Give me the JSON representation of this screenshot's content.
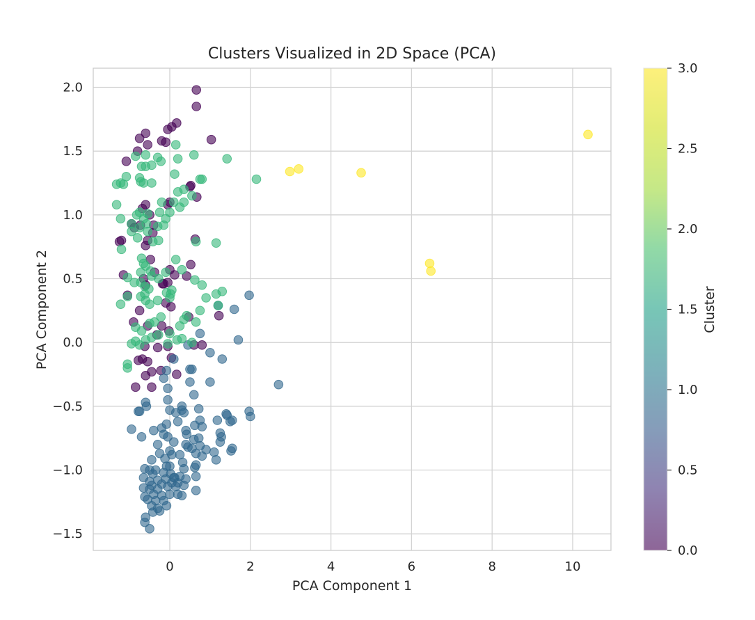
{
  "chart_data": {
    "type": "scatter",
    "title": "Clusters Visualized in 2D Space (PCA)",
    "xlabel": "PCA Component 1",
    "ylabel": "PCA Component 2",
    "xlim": [
      -1.9,
      10.95
    ],
    "ylim": [
      -1.63,
      2.15
    ],
    "xticks": [
      0,
      2,
      4,
      6,
      8,
      10
    ],
    "yticks": [
      -1.5,
      -1.0,
      -0.5,
      0.0,
      0.5,
      1.0,
      1.5,
      2.0
    ],
    "grid": true,
    "point_alpha": 0.6,
    "colormap": "viridis",
    "colorbar": {
      "label": "Cluster",
      "range": [
        0.0,
        3.0
      ],
      "ticks": [
        0.0,
        0.5,
        1.0,
        1.5,
        2.0,
        2.5,
        3.0
      ],
      "tick_labels": [
        "0.0",
        "0.5",
        "1.0",
        "1.5",
        "2.0",
        "2.5",
        "3.0"
      ]
    },
    "cluster_colors": {
      "0": "#440154",
      "1": "#31688e",
      "2": "#35b779",
      "3": "#fde725"
    },
    "series": [
      {
        "cluster": 0,
        "x": [
          0.66,
          0.66,
          0.17,
          0.05,
          -0.05,
          -0.2,
          -0.75,
          -0.6,
          -0.55,
          1.03,
          -0.8,
          -0.1,
          -1.08,
          0.52,
          0.5,
          0.67,
          0.0,
          -0.05,
          -0.6,
          -0.68,
          -0.5,
          -0.95,
          -0.4,
          -0.88,
          -0.42,
          -0.73,
          -1.2,
          -1.25,
          -0.6,
          -0.55,
          0.63,
          -0.48,
          0.52,
          -0.38,
          0.12,
          -0.65,
          0.0,
          -0.15,
          0.42,
          -0.05,
          -0.18,
          -0.6,
          -1.15,
          -1.05,
          -0.1,
          0.03,
          -0.75,
          -0.9,
          1.22,
          0.47,
          -0.2,
          -0.55,
          -0.02,
          -0.32,
          0.8,
          0.6,
          -0.3,
          -0.62,
          -0.05,
          0.04,
          -0.68,
          -0.55,
          -0.78,
          -0.22,
          0.17,
          -0.45,
          -0.6,
          -0.85,
          -0.45
        ],
        "y": [
          1.98,
          1.85,
          1.72,
          1.69,
          1.67,
          1.58,
          1.6,
          1.64,
          1.55,
          1.59,
          1.5,
          1.57,
          1.42,
          1.23,
          1.22,
          1.14,
          1.1,
          1.08,
          1.08,
          1.05,
          1.0,
          0.93,
          0.92,
          0.9,
          0.86,
          0.92,
          0.8,
          0.79,
          0.76,
          0.8,
          0.81,
          0.65,
          0.61,
          0.55,
          0.53,
          0.5,
          0.57,
          0.46,
          0.52,
          0.47,
          0.46,
          0.45,
          0.53,
          0.37,
          0.31,
          0.28,
          0.25,
          0.16,
          0.21,
          0.2,
          0.13,
          0.13,
          0.09,
          0.06,
          -0.02,
          -0.02,
          -0.04,
          -0.03,
          -0.03,
          -0.12,
          -0.13,
          -0.15,
          -0.14,
          -0.22,
          -0.25,
          -0.23,
          -0.26,
          -0.35,
          -0.35
        ]
      },
      {
        "cluster": 1,
        "x": [
          1.97,
          1.2,
          1.6,
          1.7,
          0.75,
          0.45,
          1.0,
          1.3,
          0.1,
          0.5,
          -0.08,
          0.55,
          -0.15,
          0.5,
          1.0,
          2.7,
          -0.05,
          0.6,
          -0.6,
          -0.05,
          -0.58,
          0.3,
          0.72,
          1.97,
          2.0,
          1.4,
          1.42,
          1.55,
          0.0,
          0.15,
          0.3,
          0.35,
          -0.95,
          -0.78,
          -0.75,
          0.2,
          0.62,
          0.75,
          1.18,
          1.5,
          -0.4,
          -0.2,
          -0.08,
          0.4,
          0.42,
          0.8,
          1.25,
          1.28,
          -0.7,
          -0.05,
          0.1,
          0.4,
          0.6,
          0.72,
          1.25,
          1.55,
          -0.15,
          -0.3,
          0.0,
          0.45,
          0.55,
          0.75,
          0.9,
          1.1,
          1.52,
          -0.25,
          0.05,
          0.25,
          0.65,
          0.8,
          1.15,
          -0.45,
          -0.62,
          -0.12,
          0.32,
          0.65,
          -0.5,
          -0.35,
          -0.08,
          0.0,
          0.35,
          0.62,
          -0.42,
          -0.15,
          0.02,
          0.1,
          0.25,
          0.4,
          -0.65,
          -0.5,
          -0.3,
          -0.1,
          0.12,
          0.65,
          -0.65,
          -0.45,
          -0.2,
          0.05,
          0.2,
          0.35,
          -0.5,
          -0.3,
          -0.05,
          0.15,
          0.3,
          0.65,
          -0.62,
          -0.4,
          -0.2,
          0.0,
          0.2,
          -0.55,
          -0.35,
          -0.15,
          -0.45,
          -0.3,
          -0.08,
          -0.6,
          -0.42,
          -0.25,
          -0.62,
          -0.5
        ],
        "y": [
          0.37,
          0.29,
          0.26,
          0.02,
          0.07,
          -0.02,
          -0.08,
          -0.13,
          -0.13,
          -0.21,
          -0.22,
          -0.21,
          -0.28,
          -0.31,
          -0.31,
          -0.33,
          -0.36,
          -0.41,
          -0.47,
          -0.45,
          -0.5,
          -0.5,
          -0.52,
          -0.54,
          -0.58,
          -0.56,
          -0.57,
          -0.61,
          -0.53,
          -0.55,
          -0.53,
          -0.55,
          -0.68,
          -0.54,
          -0.54,
          -0.62,
          -0.65,
          -0.61,
          -0.61,
          -0.62,
          -0.69,
          -0.67,
          -0.64,
          -0.69,
          -0.72,
          -0.66,
          -0.71,
          -0.74,
          -0.74,
          -0.74,
          -0.78,
          -0.8,
          -0.76,
          -0.75,
          -0.78,
          -0.83,
          -0.72,
          -0.8,
          -0.85,
          -0.82,
          -0.83,
          -0.81,
          -0.84,
          -0.86,
          -0.85,
          -0.87,
          -0.88,
          -0.88,
          -0.87,
          -0.89,
          -0.92,
          -0.92,
          -0.99,
          -0.91,
          -0.94,
          -0.96,
          -1.0,
          -1.0,
          -0.97,
          -0.97,
          -0.99,
          -0.98,
          -1.03,
          -1.02,
          -1.03,
          -1.06,
          -1.05,
          -1.07,
          -1.06,
          -1.09,
          -1.08,
          -1.07,
          -1.06,
          -1.05,
          -1.14,
          -1.12,
          -1.11,
          -1.1,
          -1.1,
          -1.12,
          -1.15,
          -1.15,
          -1.13,
          -1.13,
          -1.2,
          -1.16,
          -1.21,
          -1.19,
          -1.2,
          -1.19,
          -1.19,
          -1.23,
          -1.24,
          -1.24,
          -1.28,
          -1.3,
          -1.28,
          -1.37,
          -1.33,
          -1.32,
          -1.41,
          -1.46
        ]
      },
      {
        "cluster": 2,
        "x": [
          0.15,
          0.6,
          -0.6,
          -0.85,
          -0.3,
          0.2,
          -0.22,
          -0.45,
          1.42,
          -0.6,
          -0.7,
          2.15,
          0.8,
          0.75,
          -1.32,
          -1.08,
          -1.15,
          -1.22,
          -0.75,
          -0.65,
          -0.72,
          0.12,
          -0.45,
          0.35,
          0.2,
          0.55,
          0.35,
          0.25,
          -0.2,
          0.1,
          -1.32,
          -0.75,
          -0.82,
          -0.55,
          -0.65,
          -0.25,
          0.0,
          -0.1,
          -1.22,
          -0.95,
          -0.58,
          -0.75,
          -0.3,
          -0.55,
          -0.15,
          -0.95,
          0.65,
          1.15,
          -0.42,
          -0.8,
          -1.2,
          -0.7,
          -0.28,
          0.15,
          -0.65,
          -0.6,
          -0.48,
          -0.72,
          -0.1,
          0.3,
          -0.45,
          -0.28,
          0.62,
          0.8,
          -1.05,
          -0.72,
          -0.62,
          -0.88,
          -0.52,
          0.05,
          0.02,
          1.3,
          1.15,
          -0.62,
          -0.08,
          -0.72,
          0.9,
          -1.05,
          0.0,
          -0.6,
          -0.3,
          1.2,
          -1.22,
          -0.5,
          0.42,
          0.35,
          0.75,
          -0.22,
          0.65,
          -0.5,
          -0.38,
          -0.85,
          -0.7,
          0.0,
          0.25,
          -0.28,
          -0.45,
          0.3,
          -0.6,
          -0.85,
          0.55,
          0.18,
          -0.05,
          -0.95,
          -0.75,
          -1.05,
          -1.05
        ],
        "y": [
          1.55,
          1.47,
          1.47,
          1.46,
          1.45,
          1.44,
          1.42,
          1.39,
          1.44,
          1.38,
          1.38,
          1.28,
          1.28,
          1.28,
          1.24,
          1.3,
          1.24,
          1.25,
          1.29,
          1.25,
          1.26,
          1.32,
          1.25,
          1.2,
          1.18,
          1.15,
          1.1,
          1.06,
          1.1,
          1.1,
          1.08,
          1.02,
          1.0,
          1.01,
          0.97,
          1.02,
          1.02,
          0.97,
          0.97,
          0.93,
          0.93,
          0.9,
          0.91,
          0.87,
          0.92,
          0.87,
          0.79,
          0.78,
          0.79,
          0.82,
          0.73,
          0.66,
          0.8,
          0.65,
          0.62,
          0.6,
          0.56,
          0.55,
          0.55,
          0.57,
          0.52,
          0.5,
          0.49,
          0.45,
          0.51,
          0.47,
          0.44,
          0.47,
          0.42,
          0.41,
          0.38,
          0.4,
          0.38,
          0.38,
          0.39,
          0.36,
          0.35,
          0.36,
          0.35,
          0.33,
          0.33,
          0.29,
          0.3,
          0.3,
          0.21,
          0.18,
          0.25,
          0.2,
          0.16,
          0.15,
          0.16,
          0.12,
          0.09,
          0.07,
          0.13,
          0.06,
          0.04,
          0.03,
          0.02,
          0.01,
          0.0,
          0.02,
          -0.01,
          -0.01,
          -0.02,
          -0.17,
          -0.2
        ]
      },
      {
        "cluster": 3,
        "x": [
          10.38,
          3.2,
          2.98,
          4.75,
          6.45,
          6.48
        ],
        "y": [
          1.63,
          1.36,
          1.34,
          1.33,
          0.62,
          0.56
        ]
      }
    ]
  }
}
